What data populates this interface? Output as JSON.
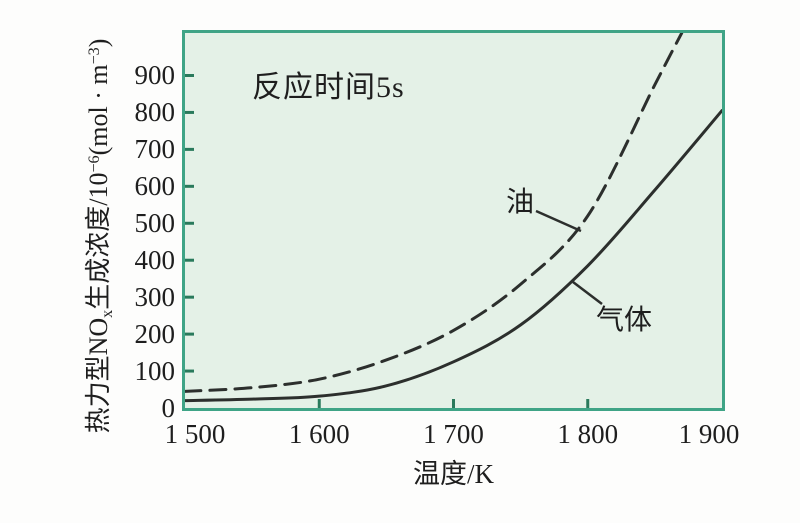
{
  "chart_data": {
    "type": "line",
    "title": "",
    "annotation": "反应时间5s",
    "xlabel": "温度/K",
    "ylabel": "热力型NOₓ生成浓度/10⁻⁶(mol·m⁻³)",
    "ylabel_parts": {
      "p1": "热力型NO",
      "sub1": "x",
      "p2": "生成浓度/10",
      "sup1": "−6",
      "p3": "(mol · m",
      "sup2": "−3",
      "p4": ")"
    },
    "xlim": [
      1500,
      1900
    ],
    "ylim": [
      0,
      1015
    ],
    "xticks": [
      1500,
      1600,
      1700,
      1800,
      1900
    ],
    "xtick_labels": [
      "1 500",
      "1 600",
      "1 700",
      "1 800",
      "1 900"
    ],
    "yticks": [
      0,
      100,
      200,
      300,
      400,
      500,
      600,
      700,
      800,
      900
    ],
    "ytick_labels": [
      "0",
      "100",
      "200",
      "300",
      "400",
      "500",
      "600",
      "700",
      "800",
      "900"
    ],
    "grid": false,
    "legend": "inline-curve-labels-with-leader-lines",
    "series": [
      {
        "name": "油",
        "line_style": "dashed",
        "points": [
          [
            1500,
            45
          ],
          [
            1550,
            55
          ],
          [
            1600,
            78
          ],
          [
            1650,
            130
          ],
          [
            1700,
            210
          ],
          [
            1750,
            335
          ],
          [
            1800,
            520
          ],
          [
            1850,
            875
          ],
          [
            1870,
            1015
          ]
        ]
      },
      {
        "name": "气体",
        "line_style": "solid",
        "points": [
          [
            1500,
            20
          ],
          [
            1550,
            24
          ],
          [
            1600,
            32
          ],
          [
            1650,
            60
          ],
          [
            1700,
            125
          ],
          [
            1750,
            225
          ],
          [
            1800,
            385
          ],
          [
            1850,
            590
          ],
          [
            1900,
            805
          ]
        ]
      }
    ],
    "colors": {
      "page_bg": "#fdfdfc",
      "plot_bg": "#e4f1e7",
      "frame": "#3fa486",
      "tick": "#2a7a5c",
      "curve": "#2c2f2d",
      "text": "#1e1e1e"
    }
  }
}
